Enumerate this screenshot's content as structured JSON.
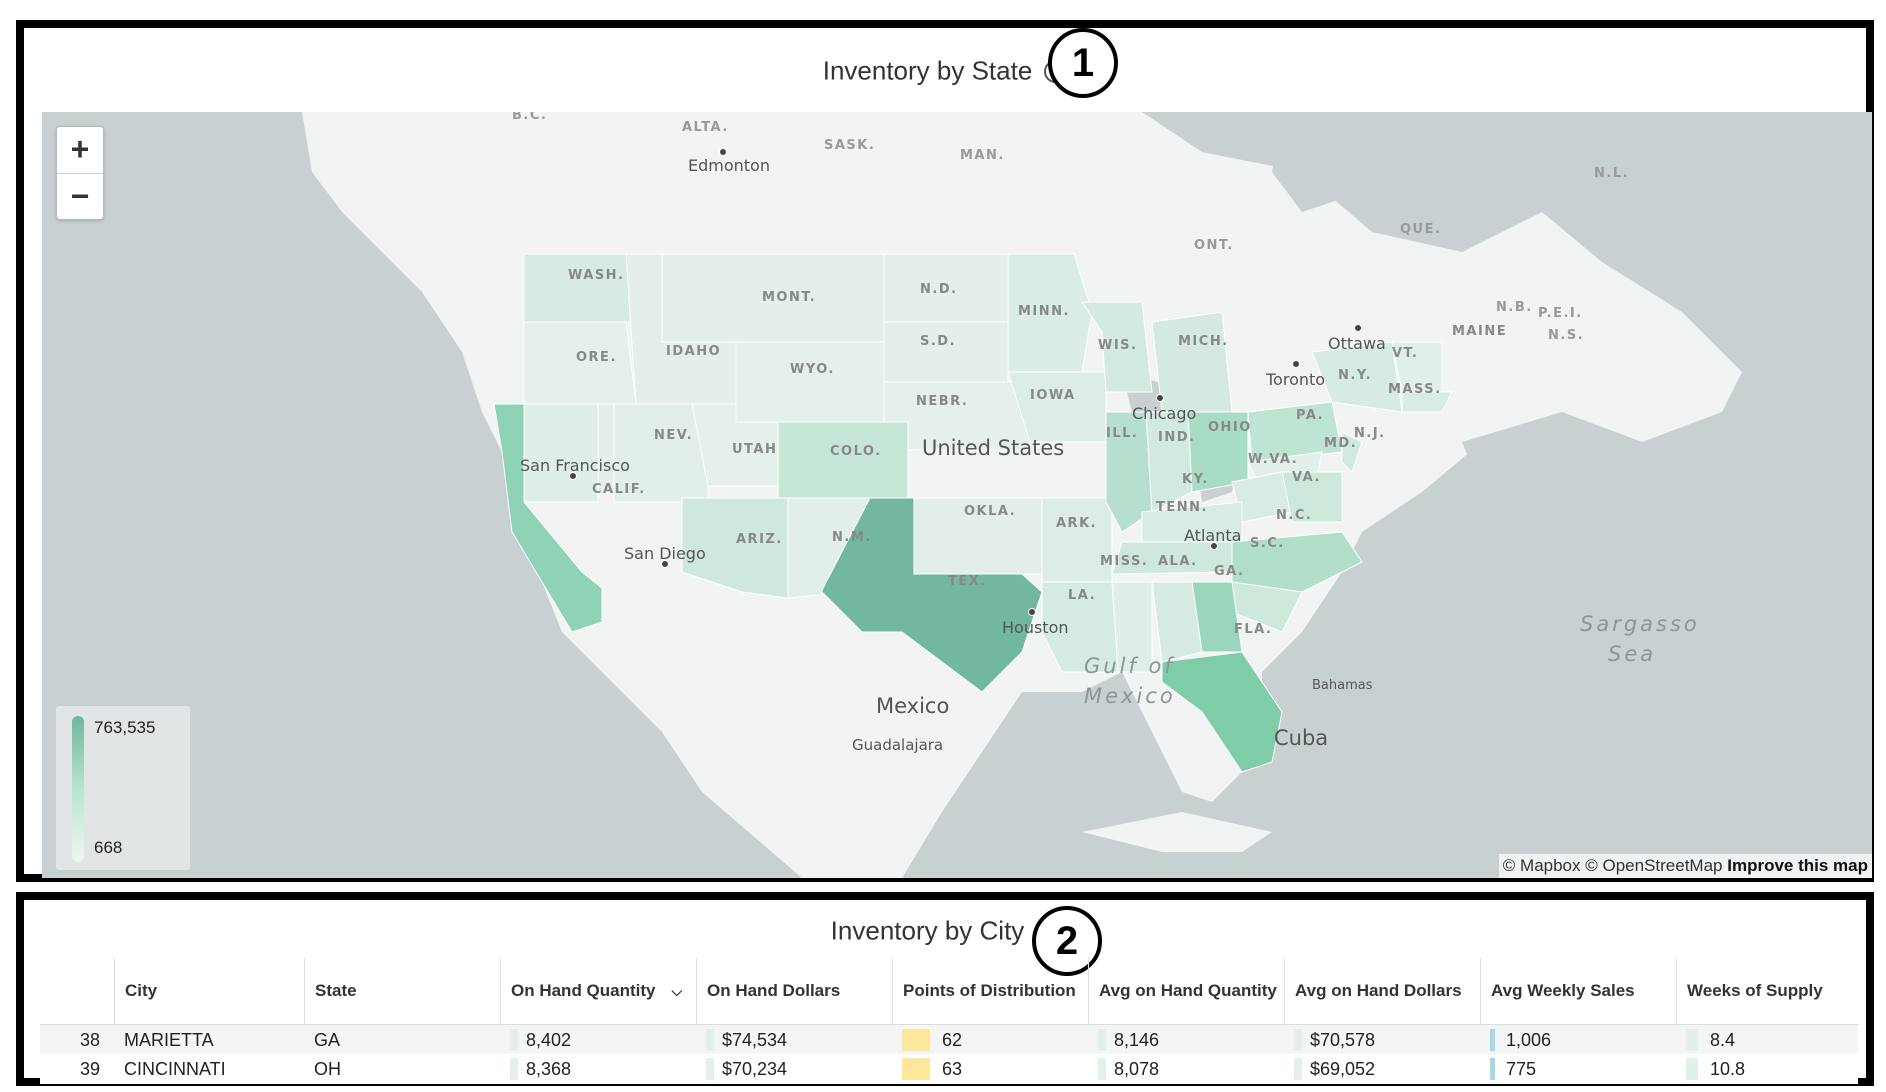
{
  "inventory_by_state": {
    "title": "Inventory by State",
    "badge": "1",
    "zoom_in": "+",
    "zoom_out": "−",
    "legend_max": "763,535",
    "legend_min": "668",
    "attribution": "© Mapbox © OpenStreetMap",
    "improve_link": "Improve this map",
    "state_labels": [
      "WASH.",
      "ORE.",
      "IDAHO",
      "MONT.",
      "N.D.",
      "S.D.",
      "WYO.",
      "NEBR.",
      "MINN.",
      "IOWA",
      "WIS.",
      "MICH.",
      "NEV.",
      "UTAH",
      "COLO.",
      "CALIF.",
      "ARIZ.",
      "N.M.",
      "TEX.",
      "OKLA.",
      "ARK.",
      "ILL.",
      "IND.",
      "OHIO",
      "PA.",
      "N.Y.",
      "VT.",
      "MASS.",
      "N.J.",
      "MD.",
      "W.VA.",
      "VA.",
      "KY.",
      "TENN.",
      "N.C.",
      "S.C.",
      "GA.",
      "ALA.",
      "MISS.",
      "LA.",
      "FLA.",
      "MAINE"
    ],
    "province_labels": [
      "ALTA.",
      "SASK.",
      "MAN.",
      "ONT.",
      "QUE.",
      "N.L.",
      "N.B.",
      "P.E.I.",
      "N.S.",
      "B.C."
    ],
    "city_labels": [
      "Edmonton",
      "Ottawa",
      "Toronto",
      "Chicago",
      "San Francisco",
      "San Diego",
      "Atlanta",
      "Houston",
      "Guadalajara",
      "Bahamas"
    ],
    "country_labels": [
      "United States",
      "Mexico",
      "Cuba"
    ],
    "water_labels": [
      "Gulf of",
      "Mexico",
      "Sargasso",
      "Sea"
    ],
    "colors": {
      "water": "#c9d0d2",
      "land": "#f2f3f3",
      "lowest": "#e9f1ee",
      "highest": "#6fb59c"
    }
  },
  "inventory_by_city": {
    "title": "Inventory by City",
    "badge": "2",
    "columns": [
      "City",
      "State",
      "On Hand Quantity",
      "On Hand Dollars",
      "Points of Distribution",
      "Avg on Hand Quantity",
      "Avg on Hand Dollars",
      "Avg Weekly Sales",
      "Weeks of Supply"
    ],
    "sort_column": "On Hand Quantity",
    "rows": [
      {
        "num": "38",
        "city": "MARIETTA",
        "state": "GA",
        "qty": "8,402",
        "dollars": "$74,534",
        "pod": "62",
        "avg_qty": "8,146",
        "avg_dollars": "$70,578",
        "weekly": "1,006",
        "weeks": "8.4"
      },
      {
        "num": "39",
        "city": "CINCINNATI",
        "state": "OH",
        "qty": "8,368",
        "dollars": "$70,234",
        "pod": "63",
        "avg_qty": "8,078",
        "avg_dollars": "$69,052",
        "weekly": "775",
        "weeks": "10.8"
      }
    ]
  }
}
